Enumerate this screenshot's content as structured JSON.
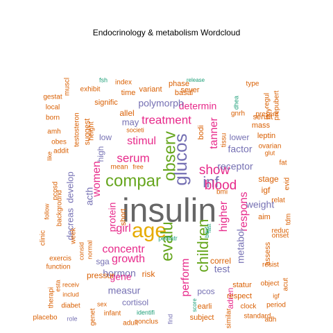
{
  "chart_data": {
    "type": "wordcloud",
    "title": "Endocrinology & metabolism  Wordcloud",
    "colors": {
      "teal": "#1b9e77",
      "orange": "#d95f02",
      "purple": "#7570b3",
      "pink": "#e7298a",
      "green": "#66a61e",
      "gold": "#e6ab02",
      "gray": "#666666"
    },
    "words": [
      {
        "text": "insulin",
        "color": "gray",
        "size": 48
      },
      {
        "text": "age",
        "color": "gold",
        "size": 30
      },
      {
        "text": "glucos",
        "color": "purple",
        "size": 26
      },
      {
        "text": "compar",
        "color": "green",
        "size": 24
      },
      {
        "text": "observ",
        "color": "green",
        "size": 24
      },
      {
        "text": "evalu",
        "color": "green",
        "size": 24
      },
      {
        "text": "children",
        "color": "green",
        "size": 22
      },
      {
        "text": "inf",
        "color": "purple",
        "size": 22
      },
      {
        "text": "blood",
        "color": "pink",
        "size": 19
      },
      {
        "text": "show",
        "color": "pink",
        "size": 19
      },
      {
        "text": "treatment",
        "color": "pink",
        "size": 17
      },
      {
        "text": "serum",
        "color": "pink",
        "size": 17
      },
      {
        "text": "stimul",
        "color": "pink",
        "size": 16
      },
      {
        "text": "growth",
        "color": "pink",
        "size": 16
      },
      {
        "text": "concentr",
        "color": "pink",
        "size": 16
      },
      {
        "text": "girl",
        "color": "pink",
        "size": 16
      },
      {
        "text": "higher",
        "color": "pink",
        "size": 16
      },
      {
        "text": "respons",
        "color": "pink",
        "size": 16
      },
      {
        "text": "perform",
        "color": "pink",
        "size": 16
      },
      {
        "text": "tanner",
        "color": "pink",
        "size": 16
      },
      {
        "text": "women",
        "color": "pink",
        "size": 16
      },
      {
        "text": "determin",
        "color": "pink",
        "size": 14
      },
      {
        "text": "polymorph",
        "color": "purple",
        "size": 14
      },
      {
        "text": "receptor",
        "color": "purple",
        "size": 14
      },
      {
        "text": "factor",
        "color": "purple",
        "size": 14
      },
      {
        "text": "weight",
        "color": "purple",
        "size": 14
      },
      {
        "text": "test",
        "color": "purple",
        "size": 14
      },
      {
        "text": "measur",
        "color": "purple",
        "size": 14
      },
      {
        "text": "hormon",
        "color": "purple",
        "size": 14
      },
      {
        "text": "protein",
        "color": "pink",
        "size": 14
      },
      {
        "text": "gene",
        "color": "pink",
        "size": 14
      },
      {
        "text": "metabol",
        "color": "purple",
        "size": 14
      },
      {
        "text": "acth",
        "color": "purple",
        "size": 14
      },
      {
        "text": "decreas",
        "color": "purple",
        "size": 13
      },
      {
        "text": "develop",
        "color": "purple",
        "size": 13
      },
      {
        "text": "may",
        "color": "purple",
        "size": 13
      },
      {
        "text": "lower",
        "color": "purple",
        "size": 12
      },
      {
        "text": "cortisol",
        "color": "purple",
        "size": 12
      },
      {
        "text": "pcos",
        "color": "purple",
        "size": 12
      },
      {
        "text": "high",
        "color": "purple",
        "size": 12
      },
      {
        "text": "low",
        "color": "purple",
        "size": 12
      },
      {
        "text": "sga",
        "color": "purple",
        "size": 12
      },
      {
        "text": "pressur",
        "color": "orange",
        "size": 12
      },
      {
        "text": "allel",
        "color": "orange",
        "size": 12
      },
      {
        "text": "suggest",
        "color": "orange",
        "size": 11
      },
      {
        "text": "bodi",
        "color": "orange",
        "size": 11
      },
      {
        "text": "igf",
        "color": "orange",
        "size": 12
      },
      {
        "text": "stage",
        "color": "orange",
        "size": 12
      },
      {
        "text": "mass",
        "color": "orange",
        "size": 11
      },
      {
        "text": "leptin",
        "color": "orange",
        "size": 11
      },
      {
        "text": "sensit",
        "color": "orange",
        "size": 11
      },
      {
        "text": "adren",
        "color": "pink",
        "size": 12
      },
      {
        "text": "correl",
        "color": "orange",
        "size": 12
      },
      {
        "text": "respect",
        "color": "orange",
        "size": 11
      },
      {
        "text": "statur",
        "color": "orange",
        "size": 11
      },
      {
        "text": "subject",
        "color": "orange",
        "size": 11
      },
      {
        "text": "earli",
        "color": "orange",
        "size": 11
      },
      {
        "text": "risk",
        "color": "orange",
        "size": 12
      },
      {
        "text": "aim",
        "color": "orange",
        "size": 11
      },
      {
        "text": "assess",
        "color": "orange",
        "size": 11
      },
      {
        "text": "short",
        "color": "orange",
        "size": 11
      },
      {
        "text": "signific",
        "color": "orange",
        "size": 11
      },
      {
        "text": "sever",
        "color": "orange",
        "size": 11
      },
      {
        "text": "basal",
        "color": "orange",
        "size": 11
      },
      {
        "text": "variant",
        "color": "orange",
        "size": 11
      },
      {
        "text": "time",
        "color": "orange",
        "size": 11
      },
      {
        "text": "phase",
        "color": "orange",
        "size": 11
      },
      {
        "text": "index",
        "color": "orange",
        "size": 10
      },
      {
        "text": "exhibit",
        "color": "orange",
        "size": 10
      },
      {
        "text": "muscl",
        "color": "orange",
        "size": 10
      },
      {
        "text": "gestat",
        "color": "orange",
        "size": 10
      },
      {
        "text": "local",
        "color": "orange",
        "size": 10
      },
      {
        "text": "born",
        "color": "orange",
        "size": 10
      },
      {
        "text": "amh",
        "color": "orange",
        "size": 10
      },
      {
        "text": "obes",
        "color": "orange",
        "size": 10
      },
      {
        "text": "addit",
        "color": "orange",
        "size": 10
      },
      {
        "text": "pcosd",
        "color": "orange",
        "size": 10
      },
      {
        "text": "background",
        "color": "orange",
        "size": 10
      },
      {
        "text": "testosteron",
        "color": "orange",
        "size": 10
      },
      {
        "text": "height",
        "color": "orange",
        "size": 10
      },
      {
        "text": "mean",
        "color": "orange",
        "size": 10
      },
      {
        "text": "free",
        "color": "orange",
        "size": 9
      },
      {
        "text": "societi",
        "color": "orange",
        "size": 9
      },
      {
        "text": "bmi",
        "color": "orange",
        "size": 10
      },
      {
        "text": "tissu",
        "color": "orange",
        "size": 10
      },
      {
        "text": "gnrh",
        "color": "orange",
        "size": 10
      },
      {
        "text": "type",
        "color": "orange",
        "size": 10
      },
      {
        "text": "regul",
        "color": "orange",
        "size": 10
      },
      {
        "text": "present",
        "color": "orange",
        "size": 10
      },
      {
        "text": "boy",
        "color": "orange",
        "size": 10
      },
      {
        "text": "prepubert",
        "color": "orange",
        "size": 10
      },
      {
        "text": "ovarian",
        "color": "orange",
        "size": 10
      },
      {
        "text": "glut",
        "color": "orange",
        "size": 9
      },
      {
        "text": "relat",
        "color": "orange",
        "size": 10
      },
      {
        "text": "fat",
        "color": "orange",
        "size": 10
      },
      {
        "text": "evid",
        "color": "orange",
        "size": 10
      },
      {
        "text": "tdm",
        "color": "orange",
        "size": 10
      },
      {
        "text": "onset",
        "color": "orange",
        "size": 10
      },
      {
        "text": "reduc",
        "color": "orange",
        "size": 10
      },
      {
        "text": "resist",
        "color": "orange",
        "size": 10
      },
      {
        "text": "object",
        "color": "orange",
        "size": 10
      },
      {
        "text": "acut",
        "color": "orange",
        "size": 10
      },
      {
        "text": "igf",
        "color": "orange",
        "size": 9
      },
      {
        "text": "clock",
        "color": "orange",
        "size": 10
      },
      {
        "text": "standard",
        "color": "orange",
        "size": 10
      },
      {
        "text": "adh",
        "color": "orange",
        "size": 10
      },
      {
        "text": "period",
        "color": "orange",
        "size": 10
      },
      {
        "text": "similar",
        "color": "orange",
        "size": 10
      },
      {
        "text": "identifi",
        "color": "teal",
        "size": 9
      },
      {
        "text": "find",
        "color": "purple",
        "size": 9
      },
      {
        "text": "conclus",
        "color": "orange",
        "size": 10
      },
      {
        "text": "adult",
        "color": "orange",
        "size": 10
      },
      {
        "text": "infant",
        "color": "orange",
        "size": 10
      },
      {
        "text": "sex",
        "color": "orange",
        "size": 9
      },
      {
        "text": "genet",
        "color": "orange",
        "size": 10
      },
      {
        "text": "diabet",
        "color": "orange",
        "size": 10
      },
      {
        "text": "role",
        "color": "purple",
        "size": 9
      },
      {
        "text": "placebo",
        "color": "orange",
        "size": 10
      },
      {
        "text": "therapi",
        "color": "orange",
        "size": 10
      },
      {
        "text": "esta",
        "color": "orange",
        "size": 9
      },
      {
        "text": "receiv",
        "color": "orange",
        "size": 9
      },
      {
        "text": "includ",
        "color": "orange",
        "size": 9
      },
      {
        "text": "exercis",
        "color": "orange",
        "size": 10
      },
      {
        "text": "function",
        "color": "orange",
        "size": 10
      },
      {
        "text": "clinic",
        "color": "orange",
        "size": 10
      },
      {
        "text": "week",
        "color": "orange",
        "size": 10
      },
      {
        "text": "consid",
        "color": "orange",
        "size": 9
      },
      {
        "text": "normal",
        "color": "orange",
        "size": 9
      },
      {
        "text": "follow",
        "color": "orange",
        "size": 9
      },
      {
        "text": "like",
        "color": "orange",
        "size": 9
      },
      {
        "text": "fsh",
        "color": "teal",
        "size": 9
      },
      {
        "text": "release",
        "color": "teal",
        "size": 8
      },
      {
        "text": "dhea",
        "color": "teal",
        "size": 9
      },
      {
        "text": "pediatr",
        "color": "teal",
        "size": 9
      },
      {
        "text": "score",
        "color": "teal",
        "size": 8
      },
      {
        "text": "bdnf",
        "color": "teal",
        "size": 8
      },
      {
        "text": "fast",
        "color": "teal",
        "size": 8
      },
      {
        "text": "ltd",
        "color": "orange",
        "size": 9
      },
      {
        "text": "anti",
        "color": "orange",
        "size": 8
      }
    ]
  }
}
